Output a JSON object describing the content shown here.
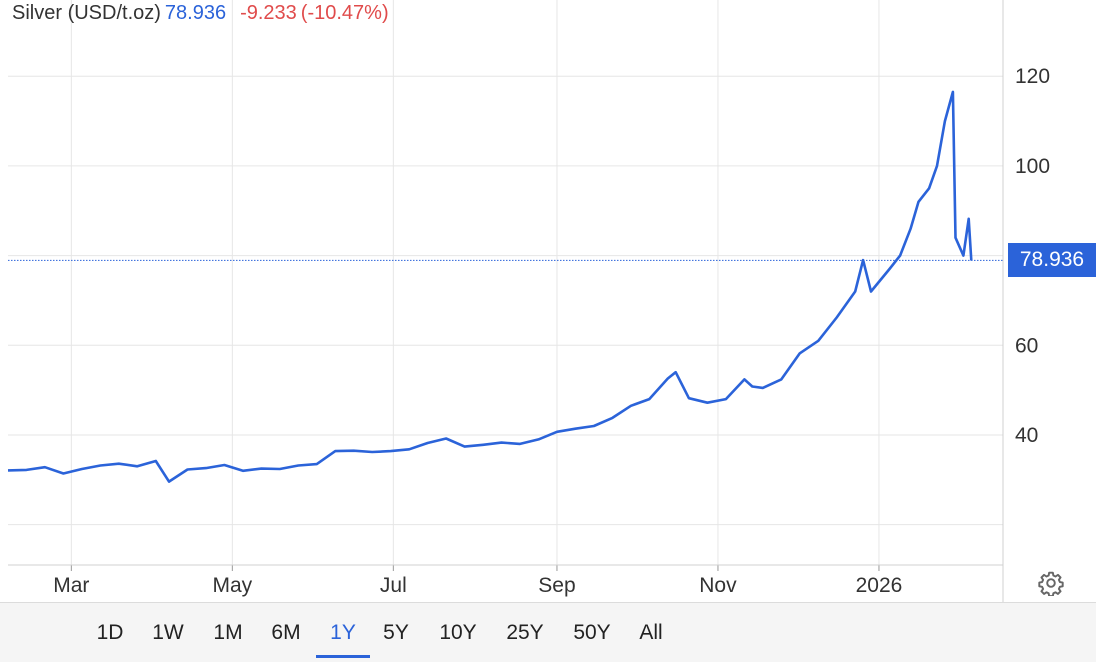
{
  "header": {
    "title": "Silver (USD/t.oz)",
    "price": "78.936",
    "change": "-9.233",
    "change_pct": "(-10.47%)"
  },
  "price_badge": "78.936",
  "range_buttons": [
    {
      "label": "1D",
      "active": false
    },
    {
      "label": "1W",
      "active": false
    },
    {
      "label": "1M",
      "active": false
    },
    {
      "label": "6M",
      "active": false
    },
    {
      "label": "1Y",
      "active": true
    },
    {
      "label": "5Y",
      "active": false
    },
    {
      "label": "10Y",
      "active": false
    },
    {
      "label": "25Y",
      "active": false
    },
    {
      "label": "50Y",
      "active": false
    },
    {
      "label": "All",
      "active": false
    }
  ],
  "colors": {
    "line": "#2b63d9",
    "negative": "#e04b4b",
    "grid": "#e6e6e6"
  },
  "icons": {
    "settings": "gear-icon"
  },
  "chart_data": {
    "type": "line",
    "title": "Silver (USD/t.oz)",
    "xlabel": "",
    "ylabel": "",
    "ylim": [
      11,
      137
    ],
    "x_tick_labels": [
      "Mar",
      "May",
      "Jul",
      "Sep",
      "Nov",
      "2026"
    ],
    "y_ticks": [
      40,
      60,
      100,
      120
    ],
    "grid": true,
    "last_value": 78.936,
    "series": [
      {
        "values": [
          {
            "x": "2025-02-05",
            "y": 32.1
          },
          {
            "x": "2025-02-12",
            "y": 32.2
          },
          {
            "x": "2025-02-19",
            "y": 32.8
          },
          {
            "x": "2025-02-26",
            "y": 31.4
          },
          {
            "x": "2025-03-05",
            "y": 32.4
          },
          {
            "x": "2025-03-12",
            "y": 33.2
          },
          {
            "x": "2025-03-19",
            "y": 33.6
          },
          {
            "x": "2025-03-26",
            "y": 33.0
          },
          {
            "x": "2025-04-02",
            "y": 34.2
          },
          {
            "x": "2025-04-07",
            "y": 29.6
          },
          {
            "x": "2025-04-14",
            "y": 32.3
          },
          {
            "x": "2025-04-21",
            "y": 32.6
          },
          {
            "x": "2025-04-28",
            "y": 33.3
          },
          {
            "x": "2025-05-05",
            "y": 32.0
          },
          {
            "x": "2025-05-12",
            "y": 32.5
          },
          {
            "x": "2025-05-19",
            "y": 32.4
          },
          {
            "x": "2025-05-26",
            "y": 33.2
          },
          {
            "x": "2025-06-02",
            "y": 33.5
          },
          {
            "x": "2025-06-09",
            "y": 36.4
          },
          {
            "x": "2025-06-16",
            "y": 36.5
          },
          {
            "x": "2025-06-23",
            "y": 36.2
          },
          {
            "x": "2025-06-30",
            "y": 36.4
          },
          {
            "x": "2025-07-07",
            "y": 36.8
          },
          {
            "x": "2025-07-14",
            "y": 38.2
          },
          {
            "x": "2025-07-21",
            "y": 39.2
          },
          {
            "x": "2025-07-28",
            "y": 37.4
          },
          {
            "x": "2025-08-04",
            "y": 37.8
          },
          {
            "x": "2025-08-11",
            "y": 38.3
          },
          {
            "x": "2025-08-18",
            "y": 38.0
          },
          {
            "x": "2025-08-25",
            "y": 39.0
          },
          {
            "x": "2025-09-01",
            "y": 40.7
          },
          {
            "x": "2025-09-08",
            "y": 41.4
          },
          {
            "x": "2025-09-15",
            "y": 42.0
          },
          {
            "x": "2025-09-22",
            "y": 43.8
          },
          {
            "x": "2025-09-29",
            "y": 46.5
          },
          {
            "x": "2025-10-06",
            "y": 48.0
          },
          {
            "x": "2025-10-13",
            "y": 52.6
          },
          {
            "x": "2025-10-16",
            "y": 54.0
          },
          {
            "x": "2025-10-21",
            "y": 48.2
          },
          {
            "x": "2025-10-28",
            "y": 47.2
          },
          {
            "x": "2025-11-04",
            "y": 48.0
          },
          {
            "x": "2025-11-11",
            "y": 52.4
          },
          {
            "x": "2025-11-14",
            "y": 50.8
          },
          {
            "x": "2025-11-18",
            "y": 50.5
          },
          {
            "x": "2025-11-25",
            "y": 52.4
          },
          {
            "x": "2025-12-02",
            "y": 58.2
          },
          {
            "x": "2025-12-09",
            "y": 61.0
          },
          {
            "x": "2025-12-16",
            "y": 66.2
          },
          {
            "x": "2025-12-23",
            "y": 72.0
          },
          {
            "x": "2025-12-26",
            "y": 79.0
          },
          {
            "x": "2025-12-29",
            "y": 72.0
          },
          {
            "x": "2026-01-05",
            "y": 77.0
          },
          {
            "x": "2026-01-09",
            "y": 80.0
          },
          {
            "x": "2026-01-13",
            "y": 86.0
          },
          {
            "x": "2026-01-16",
            "y": 92.0
          },
          {
            "x": "2026-01-20",
            "y": 95.0
          },
          {
            "x": "2026-01-23",
            "y": 100.0
          },
          {
            "x": "2026-01-26",
            "y": 110.0
          },
          {
            "x": "2026-01-29",
            "y": 116.5
          },
          {
            "x": "2026-01-30",
            "y": 84.0
          },
          {
            "x": "2026-02-02",
            "y": 80.0
          },
          {
            "x": "2026-02-04",
            "y": 88.2
          },
          {
            "x": "2026-02-05",
            "y": 78.936
          }
        ]
      }
    ]
  }
}
